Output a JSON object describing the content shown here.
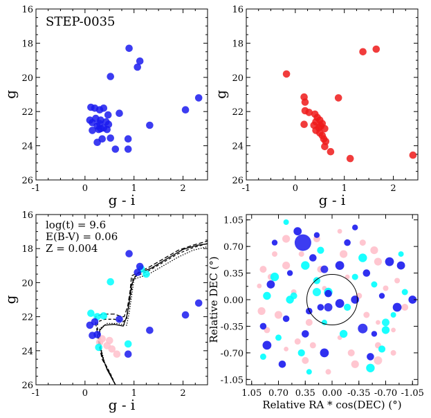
{
  "chart_data": [
    {
      "id": "top-left",
      "type": "scatter",
      "title": "STEP-0035",
      "xlabel": "g - i",
      "ylabel": "g",
      "xlim": [
        -1,
        2.5
      ],
      "ylim": [
        26,
        16
      ],
      "xticks": [
        -1,
        0,
        1,
        2
      ],
      "yticks": [
        16,
        18,
        20,
        22,
        24,
        26
      ],
      "series": [
        {
          "color": "#1a1aee",
          "points": [
            [
              0.9,
              18.3
            ],
            [
              1.12,
              19.05
            ],
            [
              1.07,
              19.4
            ],
            [
              0.52,
              19.95
            ],
            [
              2.32,
              21.2
            ],
            [
              2.05,
              21.9
            ],
            [
              0.12,
              21.75
            ],
            [
              0.2,
              21.8
            ],
            [
              0.3,
              21.9
            ],
            [
              0.38,
              21.8
            ],
            [
              0.7,
              22.1
            ],
            [
              0.47,
              22.2
            ],
            [
              0.1,
              22.5
            ],
            [
              0.22,
              22.4
            ],
            [
              0.32,
              22.5
            ],
            [
              0.43,
              22.6
            ],
            [
              0.15,
              22.65
            ],
            [
              0.3,
              22.7
            ],
            [
              0.48,
              22.75
            ],
            [
              1.32,
              22.8
            ],
            [
              0.25,
              22.85
            ],
            [
              0.38,
              22.95
            ],
            [
              0.15,
              23.1
            ],
            [
              0.28,
              23.05
            ],
            [
              0.32,
              23.0
            ],
            [
              0.45,
              23.05
            ],
            [
              0.35,
              23.6
            ],
            [
              0.52,
              23.55
            ],
            [
              0.25,
              23.8
            ],
            [
              0.62,
              24.2
            ],
            [
              0.88,
              24.2
            ],
            [
              0.88,
              23.6
            ]
          ]
        }
      ]
    },
    {
      "id": "top-right",
      "type": "scatter",
      "xlabel": "g - i",
      "ylabel": "g",
      "xlim": [
        -1,
        2.5
      ],
      "ylim": [
        26,
        16
      ],
      "xticks": [
        -1,
        0,
        1,
        2
      ],
      "yticks": [
        16,
        18,
        20,
        22,
        24,
        26
      ],
      "series": [
        {
          "color": "#ee1a1a",
          "points": [
            [
              1.65,
              18.35
            ],
            [
              1.38,
              18.5
            ],
            [
              -0.18,
              19.8
            ],
            [
              0.88,
              21.2
            ],
            [
              0.18,
              21.15
            ],
            [
              0.2,
              21.45
            ],
            [
              0.2,
              21.95
            ],
            [
              0.28,
              22.05
            ],
            [
              0.4,
              22.15
            ],
            [
              0.45,
              22.35
            ],
            [
              0.5,
              22.5
            ],
            [
              0.42,
              22.6
            ],
            [
              0.55,
              22.7
            ],
            [
              0.18,
              22.75
            ],
            [
              0.38,
              22.8
            ],
            [
              0.52,
              22.85
            ],
            [
              0.48,
              22.95
            ],
            [
              0.6,
              23.0
            ],
            [
              0.42,
              23.1
            ],
            [
              0.5,
              23.25
            ],
            [
              0.55,
              23.4
            ],
            [
              0.58,
              23.6
            ],
            [
              0.62,
              23.75
            ],
            [
              0.6,
              24.05
            ],
            [
              0.72,
              24.35
            ],
            [
              1.12,
              24.75
            ],
            [
              2.4,
              24.55
            ]
          ]
        }
      ]
    },
    {
      "id": "bottom-left",
      "type": "scatter",
      "xlabel": "g - i",
      "ylabel": "g",
      "xlim": [
        -1,
        2.5
      ],
      "ylim": [
        26,
        16
      ],
      "xticks": [
        -1,
        0,
        1,
        2
      ],
      "yticks": [
        16,
        18,
        20,
        22,
        24,
        26
      ],
      "annotations": [
        "log(t) = 9.6",
        "E(B-V) = 0.06",
        "Z = 0.004"
      ],
      "series": [
        {
          "color": "#ffc0cb",
          "points": [
            [
              0.3,
              23.5
            ],
            [
              0.45,
              23.7
            ],
            [
              0.55,
              23.9
            ],
            [
              0.65,
              24.2
            ],
            [
              0.35,
              23.3
            ],
            [
              0.5,
              23.4
            ]
          ]
        },
        {
          "color": "#00ffff",
          "points": [
            [
              0.52,
              19.95
            ],
            [
              0.12,
              21.8
            ],
            [
              0.38,
              21.95
            ],
            [
              0.28,
              23.8
            ],
            [
              0.88,
              23.6
            ],
            [
              1.15,
              19.2
            ],
            [
              1.25,
              19.5
            ],
            [
              0.25,
              22.0
            ]
          ]
        },
        {
          "color": "#1a1aee",
          "points": [
            [
              0.9,
              18.3
            ],
            [
              1.12,
              19.05
            ],
            [
              1.07,
              19.4
            ],
            [
              2.32,
              21.2
            ],
            [
              2.05,
              21.9
            ],
            [
              0.7,
              22.15
            ],
            [
              0.1,
              22.5
            ],
            [
              0.15,
              23.1
            ],
            [
              0.25,
              23.05
            ],
            [
              1.32,
              22.8
            ],
            [
              0.88,
              24.2
            ],
            [
              0.2,
              22.3
            ]
          ]
        }
      ],
      "isochrones": [
        {
          "dash": "6,3",
          "points": [
            [
              0.62,
              26
            ],
            [
              0.5,
              25.3
            ],
            [
              0.35,
              24.5
            ],
            [
              0.28,
              23.6
            ],
            [
              0.25,
              22.9
            ],
            [
              0.22,
              22.4
            ],
            [
              0.22,
              22.0
            ],
            [
              0.35,
              21.85
            ],
            [
              0.6,
              21.85
            ],
            [
              0.75,
              22.0
            ],
            [
              0.8,
              22.0
            ],
            [
              0.87,
              21.4
            ],
            [
              0.92,
              20.5
            ],
            [
              0.95,
              19.6
            ],
            [
              1.3,
              19.1
            ],
            [
              1.6,
              18.6
            ],
            [
              1.9,
              18.1
            ],
            [
              2.2,
              17.8
            ],
            [
              2.45,
              17.6
            ],
            [
              2.55,
              17.5
            ]
          ]
        },
        {
          "dash": "4,3",
          "points": [
            [
              0.62,
              26
            ],
            [
              0.52,
              25.35
            ],
            [
              0.38,
              24.6
            ],
            [
              0.3,
              23.7
            ],
            [
              0.27,
              23.0
            ],
            [
              0.25,
              22.6
            ],
            [
              0.26,
              22.3
            ],
            [
              0.4,
              22.15
            ],
            [
              0.6,
              22.15
            ],
            [
              0.78,
              22.3
            ],
            [
              0.85,
              22.1
            ],
            [
              0.9,
              21.3
            ],
            [
              0.95,
              20.4
            ],
            [
              0.98,
              19.7
            ],
            [
              1.3,
              19.3
            ],
            [
              1.6,
              18.8
            ],
            [
              1.9,
              18.3
            ],
            [
              2.2,
              17.95
            ],
            [
              2.5,
              17.7
            ]
          ]
        },
        {
          "dash": "none",
          "points": [
            [
              0.62,
              26
            ],
            [
              0.45,
              25.1
            ],
            [
              0.35,
              24.3
            ],
            [
              0.3,
              23.5
            ],
            [
              0.3,
              22.8
            ],
            [
              0.4,
              22.5
            ],
            [
              0.6,
              22.45
            ],
            [
              0.78,
              22.55
            ],
            [
              0.85,
              22.0
            ],
            [
              0.9,
              21.2
            ],
            [
              0.95,
              20.1
            ],
            [
              1.05,
              19.5
            ],
            [
              1.35,
              19.15
            ],
            [
              1.7,
              18.55
            ],
            [
              2.0,
              18.05
            ],
            [
              2.3,
              17.8
            ],
            [
              2.55,
              17.7
            ]
          ]
        },
        {
          "dash": "1.5,2",
          "points": [
            [
              0.62,
              26
            ],
            [
              0.52,
              25.4
            ],
            [
              0.4,
              24.7
            ],
            [
              0.33,
              23.9
            ],
            [
              0.3,
              23.2
            ],
            [
              0.3,
              22.7
            ],
            [
              0.45,
              22.4
            ],
            [
              0.65,
              22.4
            ],
            [
              0.85,
              22.5
            ],
            [
              0.9,
              21.8
            ],
            [
              0.95,
              20.8
            ],
            [
              1.0,
              19.8
            ],
            [
              1.3,
              19.5
            ],
            [
              1.6,
              19.0
            ],
            [
              1.9,
              18.5
            ],
            [
              2.2,
              18.1
            ],
            [
              2.55,
              17.85
            ]
          ]
        }
      ]
    },
    {
      "id": "bottom-right",
      "type": "scatter",
      "xlabel": "Relative RA * cos(DEC) (°)",
      "ylabel": "Relative DEC (°)",
      "xlim": [
        1.12,
        -1.12
      ],
      "ylim": [
        -1.12,
        1.12
      ],
      "xticks": [
        "1.05",
        "0.70",
        "0.35",
        "0.00",
        "-0.35",
        "-0.70",
        "-1.05"
      ],
      "yticks": [
        "1.05",
        "0.70",
        "0.35",
        "0.00",
        "-0.35",
        "-0.70",
        "-1.05"
      ],
      "circle": {
        "x": 0.0,
        "y": 0.0,
        "r": 0.33
      },
      "series": [
        {
          "color": "#ffc0cb",
          "points": [
            [
              0.95,
              0.18
            ],
            [
              0.8,
              0.3
            ],
            [
              0.6,
              0.45
            ],
            [
              0.4,
              0.6
            ],
            [
              0.2,
              0.8
            ],
            [
              -0.1,
              0.9
            ],
            [
              -0.4,
              0.75
            ],
            [
              -0.6,
              0.5
            ],
            [
              -0.85,
              0.25
            ],
            [
              -0.95,
              -0.1
            ],
            [
              -0.8,
              -0.4
            ],
            [
              -0.6,
              -0.6
            ],
            [
              -0.3,
              -0.85
            ],
            [
              0.05,
              -0.95
            ],
            [
              0.35,
              -0.8
            ],
            [
              0.6,
              -0.65
            ],
            [
              0.85,
              -0.4
            ],
            [
              0.92,
              -0.15
            ],
            [
              0.5,
              0.1
            ],
            [
              0.3,
              -0.3
            ],
            [
              -0.2,
              0.3
            ],
            [
              -0.45,
              -0.2
            ],
            [
              0.7,
              -0.2
            ],
            [
              -0.7,
              0.15
            ],
            [
              0.15,
              0.4
            ],
            [
              -0.1,
              -0.5
            ],
            [
              0.45,
              -0.55
            ],
            [
              -0.55,
              0.65
            ],
            [
              0.75,
              0.6
            ],
            [
              -0.25,
              -0.7
            ],
            [
              0.1,
              0.15
            ],
            [
              -0.35,
              0.05
            ],
            [
              0.6,
              0.8
            ],
            [
              -0.8,
              -0.7
            ],
            [
              0.9,
              0.4
            ],
            [
              -0.6,
              -0.3
            ],
            [
              0.25,
              -0.6
            ],
            [
              -0.15,
              0.6
            ]
          ]
        },
        {
          "color": "#00ffff",
          "points": [
            [
              0.6,
              1.02
            ],
            [
              0.2,
              0.25
            ],
            [
              0.05,
              0.1
            ],
            [
              -0.3,
              0.3
            ],
            [
              0.85,
              0.05
            ],
            [
              -0.9,
              0.6
            ],
            [
              0.4,
              -0.7
            ],
            [
              -0.5,
              -0.9
            ],
            [
              0.7,
              -0.5
            ],
            [
              -0.7,
              -0.4
            ],
            [
              0.1,
              -0.3
            ],
            [
              -0.2,
              -0.1
            ],
            [
              0.35,
              0.45
            ],
            [
              -0.55,
              0.2
            ],
            [
              0.55,
              0.0
            ],
            [
              -0.8,
              -0.2
            ],
            [
              0.15,
              0.65
            ],
            [
              -0.4,
              0.55
            ],
            [
              0.9,
              -0.75
            ],
            [
              -0.15,
              -0.45
            ],
            [
              0.3,
              -0.95
            ],
            [
              -0.65,
              -0.65
            ],
            [
              0.75,
              0.3
            ],
            [
              -0.95,
              0.1
            ]
          ]
        },
        {
          "color": "#1a1aee",
          "points": [
            [
              0.75,
              0.75
            ],
            [
              0.05,
              0.08
            ],
            [
              -0.1,
              -0.05
            ],
            [
              0.15,
              -0.1
            ],
            [
              -0.3,
              0.0
            ],
            [
              -0.55,
              -0.45
            ],
            [
              0.25,
              0.55
            ],
            [
              -0.75,
              0.5
            ],
            [
              0.9,
              -0.35
            ],
            [
              0.45,
              0.9
            ],
            [
              -0.3,
              0.95
            ],
            [
              0.65,
              -0.85
            ],
            [
              -0.85,
              -0.1
            ],
            [
              0.3,
              -0.15
            ],
            [
              -1.05,
              0.0
            ],
            [
              0.55,
              0.35
            ],
            [
              -0.45,
              0.35
            ],
            [
              0.1,
              -0.7
            ],
            [
              -0.2,
              0.75
            ],
            [
              0.8,
              0.2
            ],
            [
              -0.65,
              0.05
            ],
            [
              0.35,
              -0.45
            ],
            [
              -0.1,
              0.45
            ],
            [
              0.6,
              -0.25
            ],
            [
              -0.9,
              0.45
            ],
            [
              0.2,
              0.85
            ],
            [
              -0.5,
              -0.75
            ],
            [
              0.85,
              -0.6
            ]
          ]
        }
      ]
    }
  ]
}
